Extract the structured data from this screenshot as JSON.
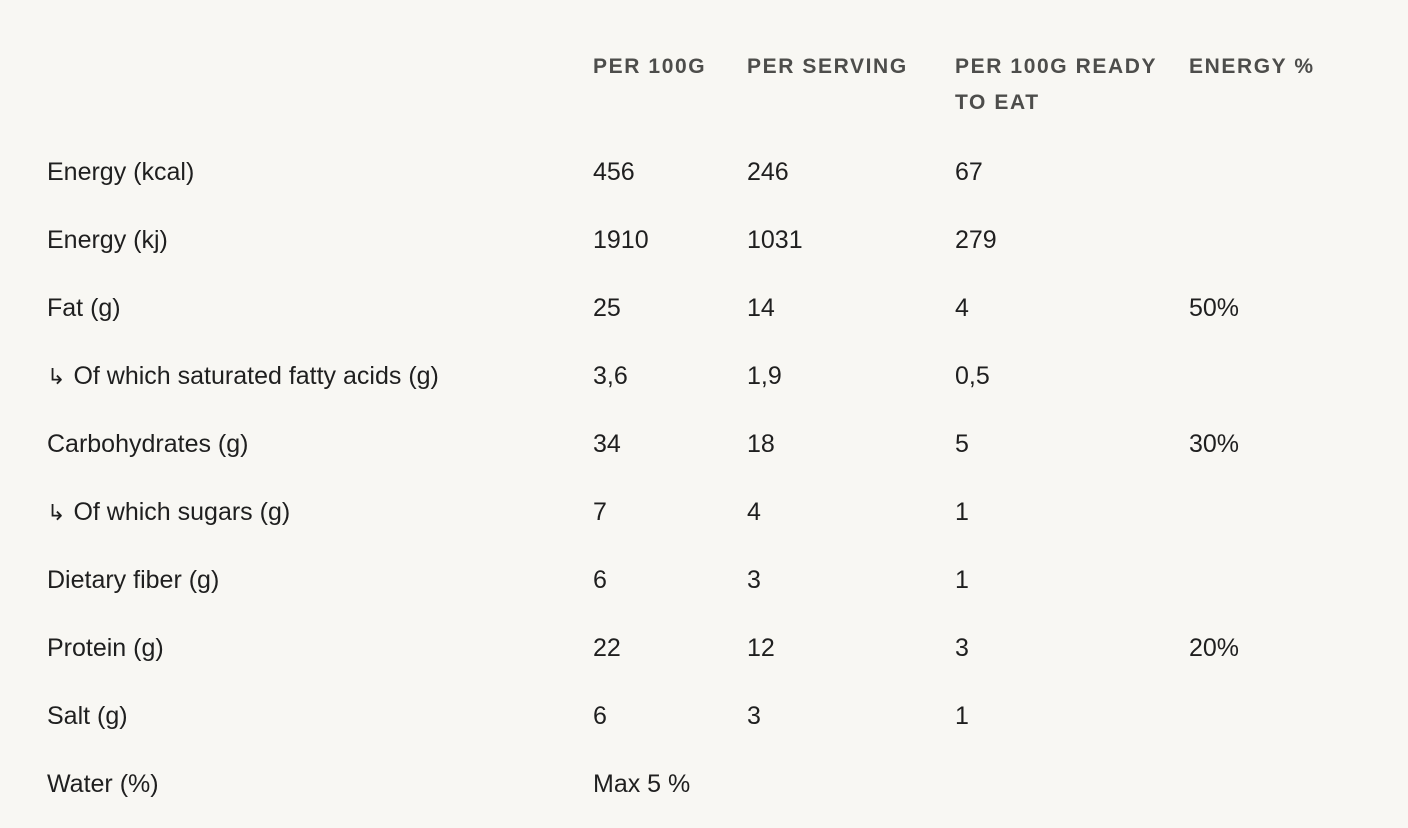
{
  "table": {
    "headers": [
      "PER 100G",
      "PER SERVING",
      "PER 100G READY TO EAT",
      "ENERGY %"
    ],
    "rows": [
      {
        "label": "Energy (kcal)",
        "sub": false,
        "per100g": "456",
        "perServing": "246",
        "ready": "67",
        "energy": ""
      },
      {
        "label": "Energy (kj)",
        "sub": false,
        "per100g": "1910",
        "perServing": "1031",
        "ready": "279",
        "energy": ""
      },
      {
        "label": "Fat (g)",
        "sub": false,
        "per100g": "25",
        "perServing": "14",
        "ready": "4",
        "energy": "50%"
      },
      {
        "label": "Of which saturated fatty acids (g)",
        "sub": true,
        "per100g": "3,6",
        "perServing": "1,9",
        "ready": "0,5",
        "energy": ""
      },
      {
        "label": "Carbohydrates (g)",
        "sub": false,
        "per100g": "34",
        "perServing": "18",
        "ready": "5",
        "energy": "30%"
      },
      {
        "label": "Of which sugars (g)",
        "sub": true,
        "per100g": "7",
        "perServing": "4",
        "ready": "1",
        "energy": ""
      },
      {
        "label": "Dietary fiber (g)",
        "sub": false,
        "per100g": "6",
        "perServing": "3",
        "ready": "1",
        "energy": ""
      },
      {
        "label": "Protein (g)",
        "sub": false,
        "per100g": "22",
        "perServing": "12",
        "ready": "3",
        "energy": "20%"
      },
      {
        "label": "Salt (g)",
        "sub": false,
        "per100g": "6",
        "perServing": "3",
        "ready": "1",
        "energy": ""
      },
      {
        "label": "Water (%)",
        "sub": false,
        "per100g": "Max 5 %",
        "perServing": "",
        "ready": "",
        "energy": ""
      }
    ],
    "sub_arrow_icon": "subitem-arrow-icon",
    "colors": {
      "background": "#f8f7f3",
      "text": "#1f1f1f",
      "header_text": "#4d4d4b"
    }
  }
}
